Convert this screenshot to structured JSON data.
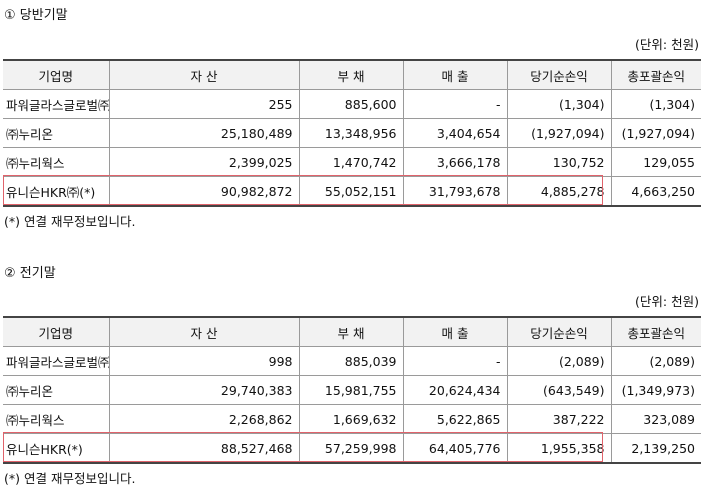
{
  "sections": [
    {
      "title": "① 당반기말",
      "unit": "(단위: 천원)",
      "headers": [
        "기업명",
        "자 산",
        "부 채",
        "매 출",
        "당기순손익",
        "총포괄손익"
      ],
      "rows": [
        [
          "파워글라스글로벌㈜",
          "255",
          "885,600",
          "-",
          "(1,304)",
          "(1,304)"
        ],
        [
          "㈜누리온",
          "25,180,489",
          "13,348,956",
          "3,404,654",
          "(1,927,094)",
          "(1,927,094)"
        ],
        [
          "㈜누리웍스",
          "2,399,025",
          "1,470,742",
          "3,666,178",
          "130,752",
          "129,055"
        ],
        [
          "유니슨HKR㈜(*)",
          "90,982,872",
          "55,052,151",
          "31,793,678",
          "4,885,278",
          "4,663,250"
        ]
      ],
      "note": "(*) 연결 재무정보입니다."
    },
    {
      "title": "② 전기말",
      "unit": "(단위: 천원)",
      "headers": [
        "기업명",
        "자 산",
        "부 채",
        "매 출",
        "당기순손익",
        "총포괄손익"
      ],
      "rows": [
        [
          "파워글라스글로벌㈜",
          "998",
          "885,039",
          "-",
          "(2,089)",
          "(2,089)"
        ],
        [
          "㈜누리온",
          "29,740,383",
          "15,981,755",
          "20,624,434",
          "(643,549)",
          "(1,349,973)"
        ],
        [
          "㈜누리웍스",
          "2,268,862",
          "1,669,632",
          "5,622,865",
          "387,222",
          "323,089"
        ],
        [
          "유니슨HKR(*)",
          "88,527,468",
          "57,259,998",
          "64,405,776",
          "1,955,358",
          "2,139,250"
        ]
      ],
      "note": "(*) 연결 재무정보입니다."
    }
  ],
  "highlight_color": "#e0636b"
}
